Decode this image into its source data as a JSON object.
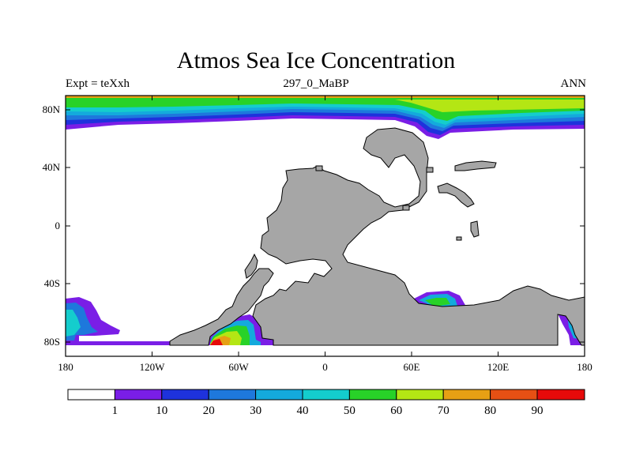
{
  "title": "Atmos Sea Ice Concentration",
  "subtitle_left": "Expt = teXxh",
  "subtitle_center": "297_0_MaBP",
  "subtitle_right": "ANN",
  "colors": {
    "land": "#a6a6a6",
    "levels": [
      "#ffffff",
      "#7a1ee6",
      "#1e32dc",
      "#1e78dc",
      "#14aadc",
      "#14cdcd",
      "#28d228",
      "#b4e614",
      "#e6a014",
      "#e65014",
      "#e60a0a"
    ],
    "frame": "#000000"
  },
  "axes": {
    "x_ticks": [
      "180",
      "120W",
      "60W",
      "0",
      "60E",
      "120E",
      "180"
    ],
    "y_ticks": [
      "80N",
      "40N",
      "0",
      "40S",
      "80S"
    ]
  },
  "colorbar": {
    "labels": [
      "1",
      "10",
      "20",
      "30",
      "40",
      "50",
      "60",
      "70",
      "80",
      "90"
    ]
  }
}
